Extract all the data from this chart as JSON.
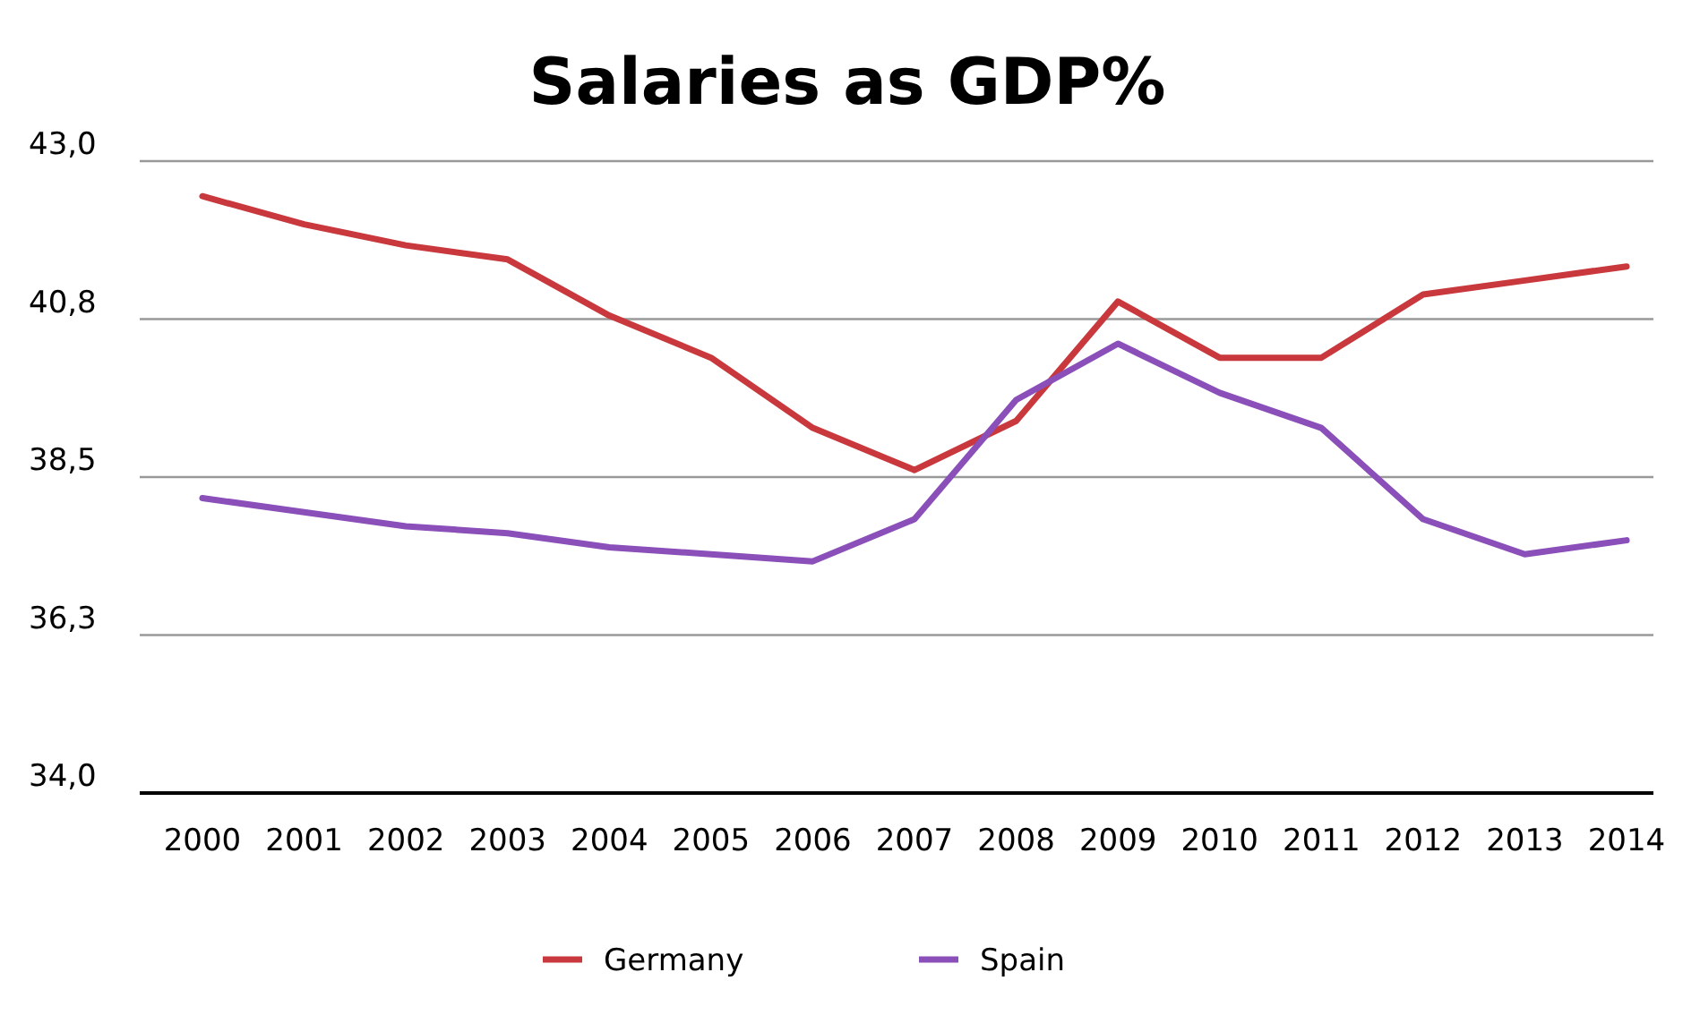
{
  "chart_data": {
    "type": "line",
    "title": "Salaries as GDP%",
    "categories": [
      "2000",
      "2001",
      "2002",
      "2003",
      "2004",
      "2005",
      "2006",
      "2007",
      "2008",
      "2009",
      "2010",
      "2011",
      "2012",
      "2013",
      "2014"
    ],
    "series": [
      {
        "name": "Germany",
        "color": "#c8383c",
        "values": [
          42.5,
          42.1,
          41.8,
          41.6,
          40.8,
          40.2,
          39.2,
          38.6,
          39.3,
          41.0,
          40.2,
          40.2,
          41.1,
          41.3,
          41.5
        ]
      },
      {
        "name": "Spain",
        "color": "#8a4fb8",
        "values": [
          38.2,
          38.0,
          37.8,
          37.7,
          37.5,
          37.4,
          37.3,
          37.9,
          39.6,
          40.4,
          39.7,
          39.2,
          37.9,
          37.4,
          37.6
        ]
      }
    ],
    "ylim": [
      34,
      43
    ],
    "yticks": [
      {
        "value": 34,
        "label": "34,0"
      },
      {
        "value": 36.25,
        "label": "36,3"
      },
      {
        "value": 38.5,
        "label": "38,5"
      },
      {
        "value": 40.75,
        "label": "40,8"
      },
      {
        "value": 43,
        "label": "43,0"
      }
    ],
    "grid": "y",
    "legend": "bottom",
    "marker": "none",
    "line_style": "solid"
  }
}
